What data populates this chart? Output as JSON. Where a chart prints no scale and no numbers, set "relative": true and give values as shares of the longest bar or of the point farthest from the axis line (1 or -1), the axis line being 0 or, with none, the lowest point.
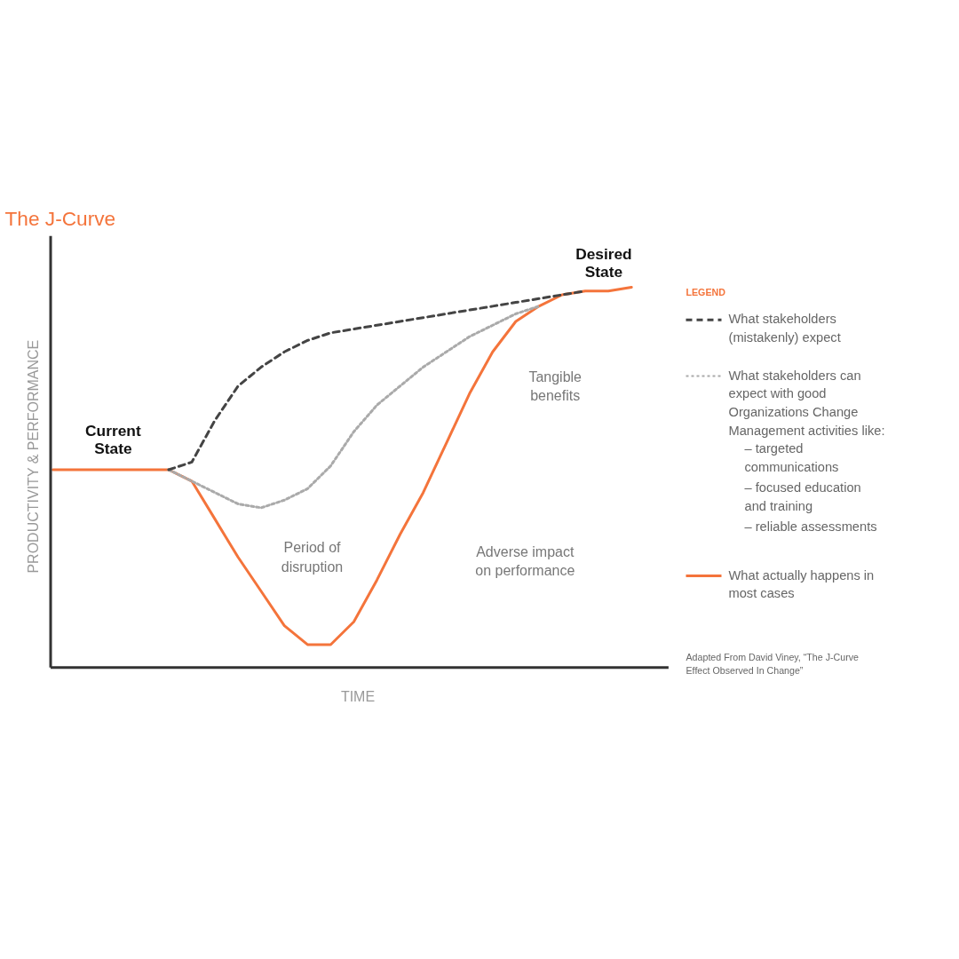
{
  "chart_data": {
    "type": "line",
    "title": "The J-Curve",
    "xlabel": "TIME",
    "ylabel": "PRODUCTIVITY & PERFORMANCE",
    "relative": true,
    "grid": false,
    "legend": "right",
    "legend_title": "LEGEND",
    "categories": [
      null,
      null,
      null,
      null,
      null,
      null,
      null,
      null,
      null,
      null,
      null,
      null,
      null,
      null,
      null,
      null,
      null,
      null,
      null,
      null,
      null,
      null,
      null,
      null,
      null,
      null
    ],
    "series": [
      {
        "name": "What stakeholders (mistakenly) expect",
        "color": "#444444",
        "line_style": "dashed",
        "values": [
          null,
          null,
          null,
          null,
          null,
          0.52,
          0.54,
          0.65,
          0.74,
          0.79,
          0.83,
          0.86,
          0.88,
          0.89,
          0.9,
          0.91,
          0.92,
          0.93,
          0.94,
          0.95,
          0.96,
          0.97,
          0.98,
          0.99,
          null,
          null
        ]
      },
      {
        "name": "What stakeholders can expect with good Organizations Change Management activities like:",
        "color": "#aaaaaa",
        "line_style": "dotted",
        "values": [
          null,
          null,
          null,
          null,
          null,
          0.52,
          0.49,
          0.46,
          0.43,
          0.42,
          0.44,
          0.47,
          0.53,
          0.62,
          0.69,
          0.74,
          0.79,
          0.83,
          0.87,
          0.9,
          0.93,
          0.95,
          null,
          null,
          null,
          null
        ]
      },
      {
        "name": "What actually happens in most cases",
        "color": "#f4743b",
        "line_style": "solid",
        "values": [
          0.52,
          0.52,
          0.52,
          0.52,
          0.52,
          0.52,
          0.49,
          0.39,
          0.29,
          0.2,
          0.11,
          0.06,
          0.06,
          0.12,
          0.23,
          0.35,
          0.46,
          0.59,
          0.72,
          0.83,
          0.91,
          0.95,
          0.98,
          0.99,
          0.99,
          1
        ]
      }
    ],
    "annotations": [
      "Current State",
      "Desired State",
      "Tangible benefits",
      "Period of disruption",
      "Adverse impact on performance",
      "– targeted communications",
      "– focused education and training",
      "– reliable assessments",
      "Adapted From David Viney, “The J-Curve Effect Observed In Change”"
    ]
  }
}
